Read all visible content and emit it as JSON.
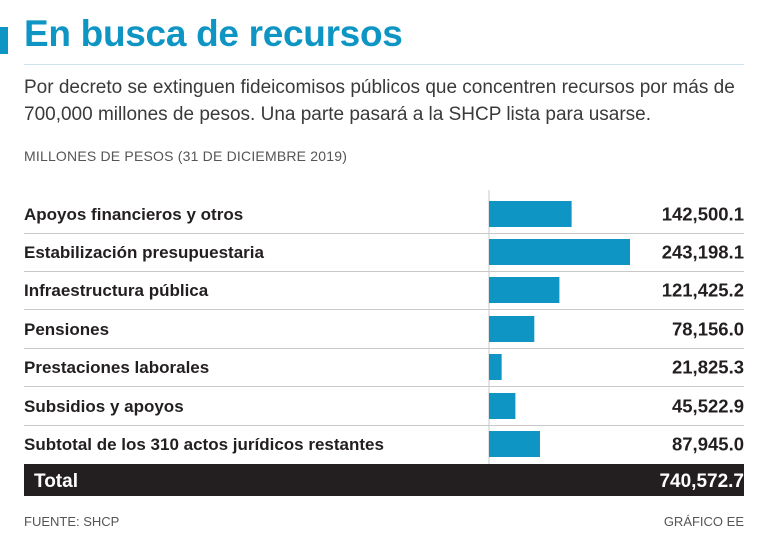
{
  "header": {
    "title": "En busca de recursos",
    "subtitle": "Por decreto se extinguen fideicomisos públicos que concentren recursos por más de 700,000 millones de pesos. Una parte pasará a la SHCP lista para usarse.",
    "units": "MILLONES DE PESOS (31 DE DICIEMBRE 2019)"
  },
  "chart_data": {
    "type": "bar",
    "orientation": "horizontal",
    "categories": [
      "Apoyos financieros y otros",
      "Estabilización presupuestaria",
      "Infraestructura pública",
      "Pensiones",
      "Prestaciones laborales",
      "Subsidios y apoyos",
      "Subtotal de los 310 actos jurídicos restantes"
    ],
    "values": [
      142500.1,
      243198.1,
      121425.2,
      78156.0,
      21825.3,
      45522.9,
      87945.0
    ],
    "value_labels": [
      "142,500.1",
      "243,198.1",
      "121,425.2",
      "78,156.0",
      "21,825.3",
      "45,522.9",
      "87,945.0"
    ],
    "total": {
      "label": "Total",
      "value": 740572.7,
      "value_label": "740,572.7"
    },
    "xlim": [
      0,
      243198.1
    ],
    "bar_color": "#0e95c3"
  },
  "colors": {
    "accent": "#0e95c3",
    "total_background": "#231f20",
    "row_divider": "#c9c9c9"
  },
  "footer": {
    "source": "FUENTE: SHCP",
    "credit": "GRÁFICO EE"
  }
}
